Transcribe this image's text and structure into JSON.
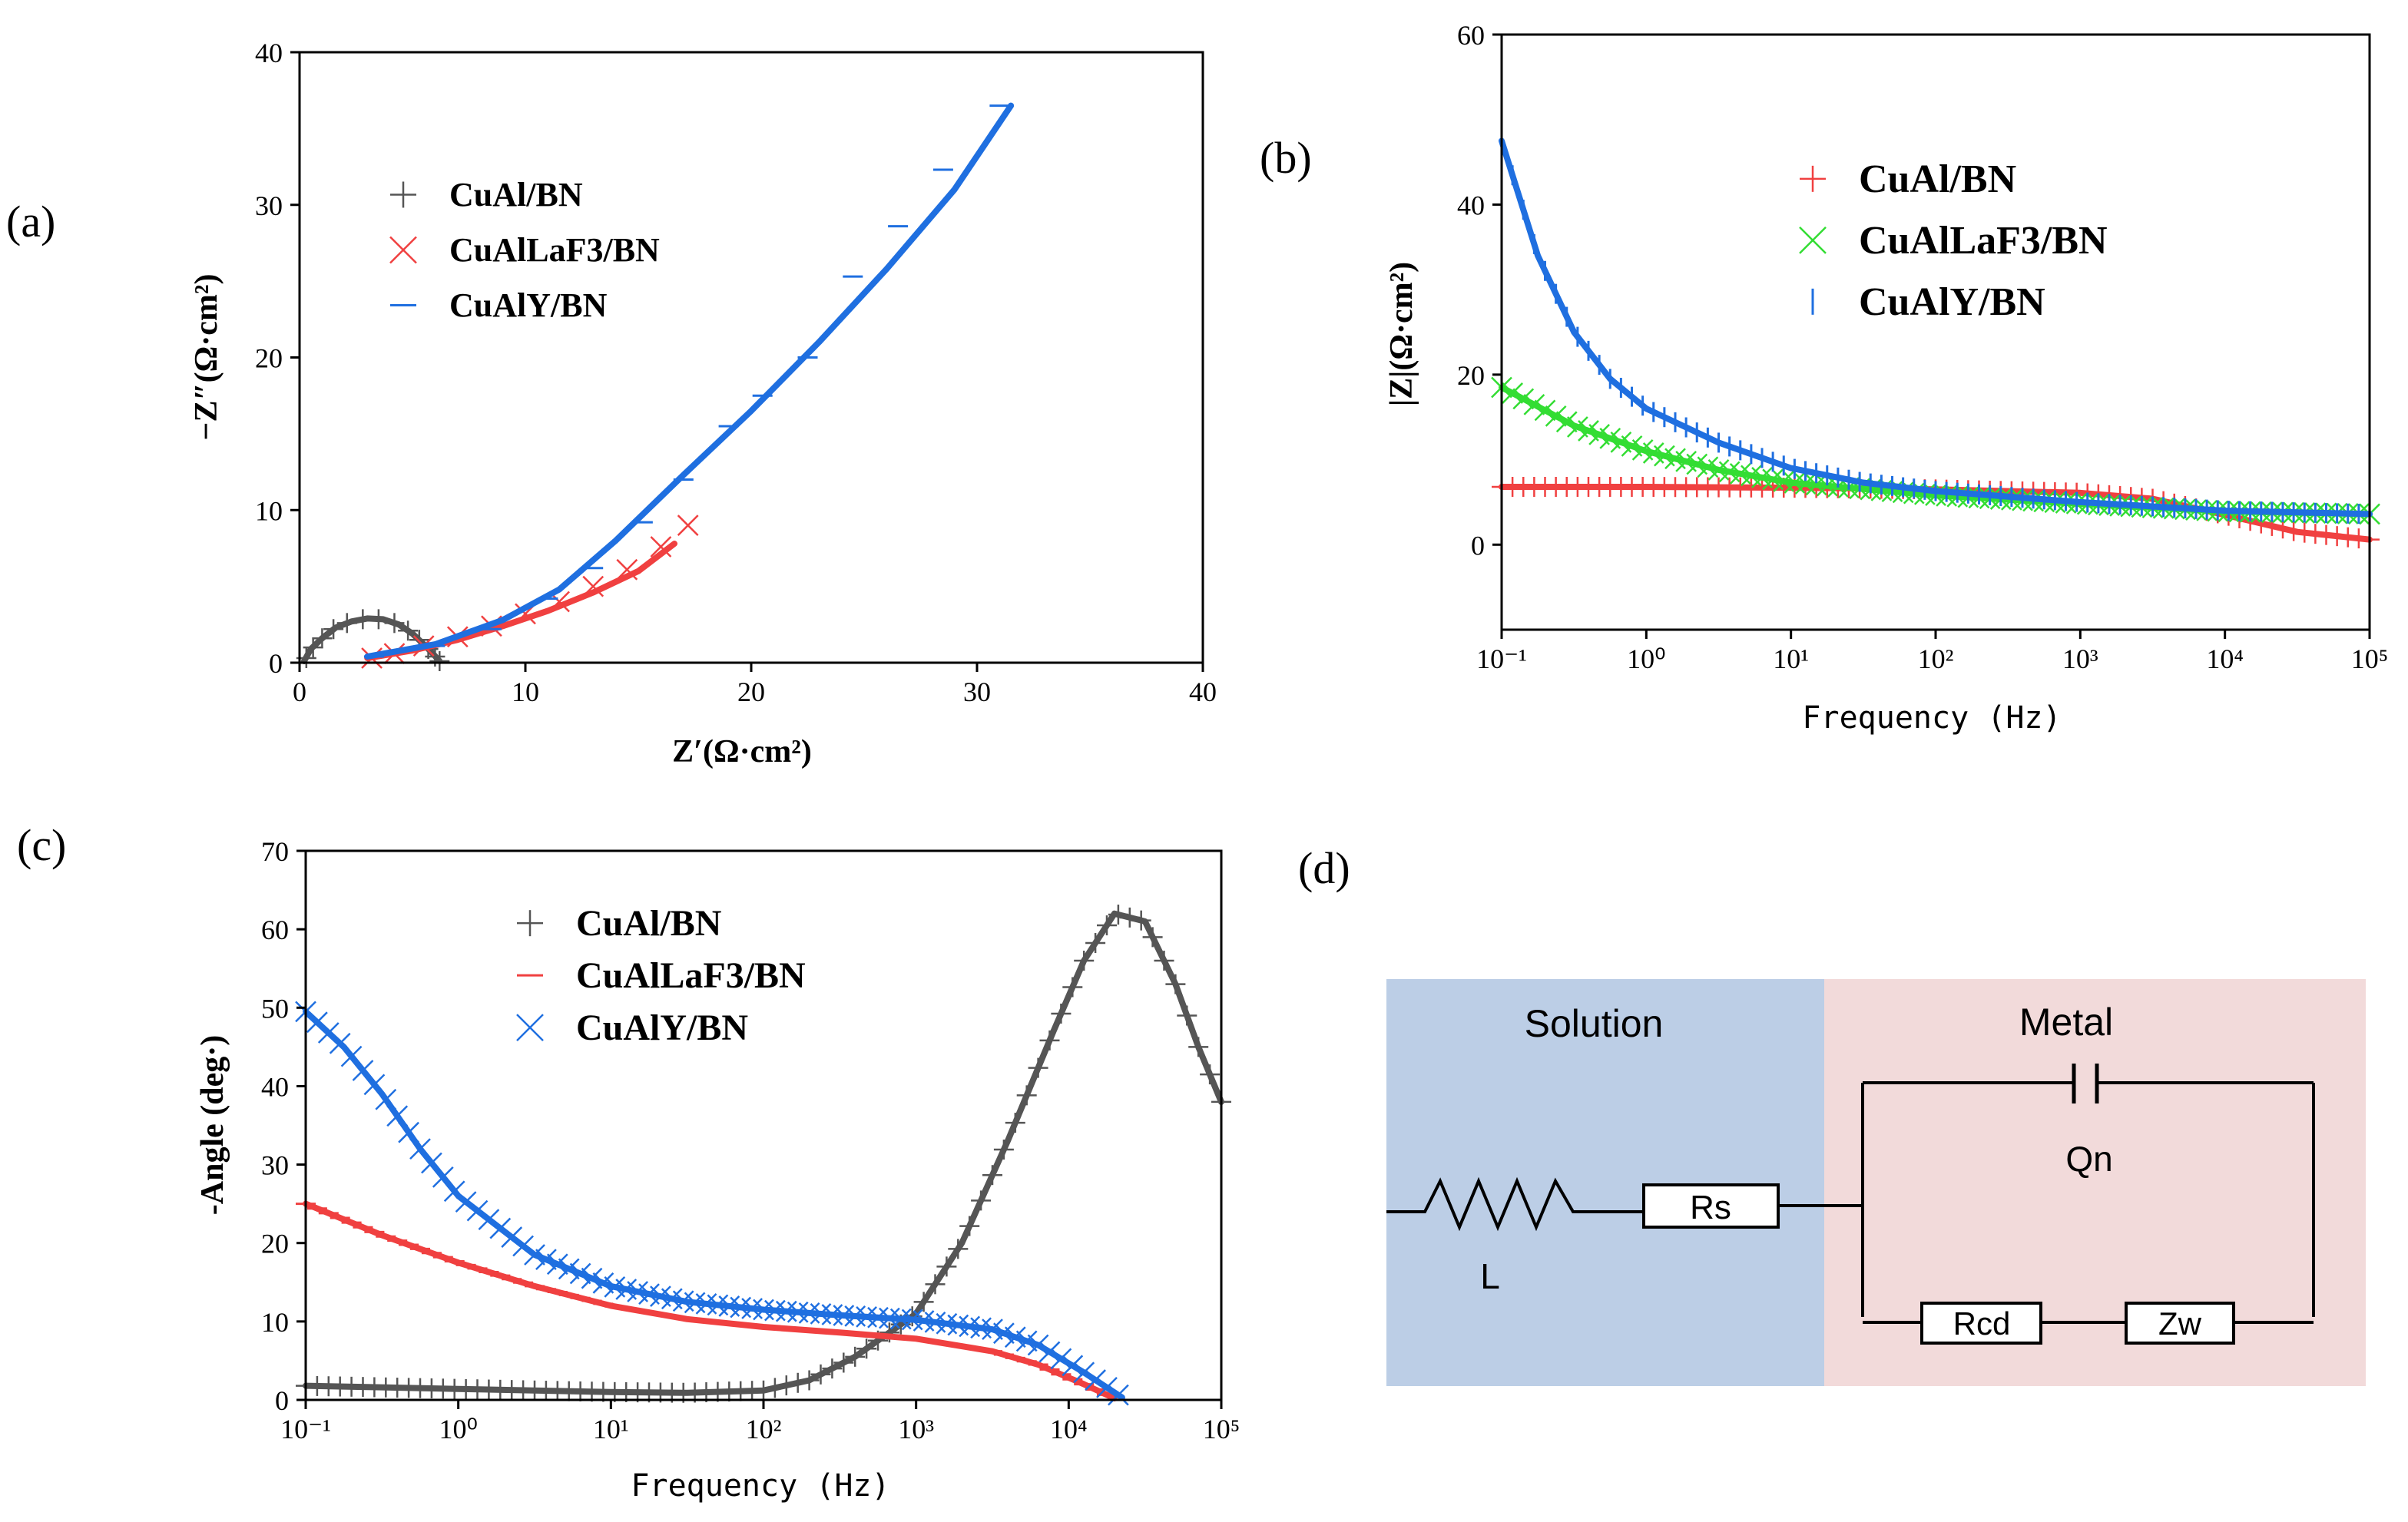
{
  "panels": {
    "a": {
      "label": "(a)"
    },
    "b": {
      "label": "(b)"
    },
    "c": {
      "label": "(c)"
    },
    "d": {
      "label": "(d)"
    }
  },
  "colors": {
    "gray": "#555555",
    "red": "#f04040",
    "blue": "#1f6fe0",
    "green": "#33dd33",
    "solution_bg": "#bccee6",
    "metal_bg": "#f2dada"
  },
  "chart_data": [
    {
      "id": "a",
      "type": "scatter",
      "title": "",
      "xlabel": "Z′(Ω·cm²)",
      "ylabel": "−Z″(Ω·cm²)",
      "xlim": [
        0,
        40
      ],
      "ylim": [
        0,
        40
      ],
      "xticks": [
        "0",
        "10",
        "20",
        "30",
        "40"
      ],
      "yticks": [
        "0",
        "10",
        "20",
        "30",
        "40"
      ],
      "legend": [
        {
          "name": "CuAl/BN",
          "marker": "+",
          "color": "#555555"
        },
        {
          "name": "CuAlLaF3/BN",
          "marker": "x",
          "color": "#f04040"
        },
        {
          "name": "CuAlY/BN",
          "marker": "-",
          "color": "#1f6fe0"
        }
      ],
      "series": [
        {
          "name": "CuAl/BN",
          "color": "#555555",
          "marker": "+",
          "points": [
            [
              0.3,
              0.3
            ],
            [
              0.6,
              1.0
            ],
            [
              1.0,
              1.6
            ],
            [
              1.5,
              2.2
            ],
            [
              2.1,
              2.6
            ],
            [
              2.8,
              2.85
            ],
            [
              3.5,
              2.85
            ],
            [
              4.2,
              2.6
            ],
            [
              4.8,
              2.1
            ],
            [
              5.3,
              1.5
            ],
            [
              5.7,
              0.9
            ],
            [
              6.0,
              0.4
            ],
            [
              6.2,
              0.1
            ]
          ],
          "fit": [
            [
              0.2,
              0.1
            ],
            [
              0.5,
              0.9
            ],
            [
              1.0,
              1.6
            ],
            [
              1.6,
              2.3
            ],
            [
              2.3,
              2.7
            ],
            [
              3.0,
              2.9
            ],
            [
              3.7,
              2.85
            ],
            [
              4.4,
              2.5
            ],
            [
              5.0,
              1.9
            ],
            [
              5.5,
              1.2
            ],
            [
              5.9,
              0.6
            ],
            [
              6.2,
              0.1
            ]
          ]
        },
        {
          "name": "CuAlLaF3/BN",
          "color": "#f04040",
          "marker": "x",
          "points": [
            [
              3.2,
              0.3
            ],
            [
              4.2,
              0.6
            ],
            [
              5.5,
              1.1
            ],
            [
              7.0,
              1.7
            ],
            [
              8.5,
              2.4
            ],
            [
              10.0,
              3.2
            ],
            [
              11.5,
              4.0
            ],
            [
              13.0,
              5.0
            ],
            [
              14.5,
              6.1
            ],
            [
              16.0,
              7.6
            ],
            [
              17.2,
              9.0
            ]
          ],
          "fit": [
            [
              3.0,
              0.3
            ],
            [
              5.0,
              0.8
            ],
            [
              7.0,
              1.5
            ],
            [
              9.0,
              2.4
            ],
            [
              11.0,
              3.4
            ],
            [
              13.0,
              4.6
            ],
            [
              15.0,
              6.0
            ],
            [
              16.6,
              7.8
            ]
          ]
        },
        {
          "name": "CuAlY/BN",
          "color": "#1f6fe0",
          "marker": "-",
          "points": [
            [
              3.3,
              0.4
            ],
            [
              6.0,
              1.1
            ],
            [
              8.5,
              2.2
            ],
            [
              11.0,
              4.2
            ],
            [
              13.0,
              6.2
            ],
            [
              15.2,
              9.2
            ],
            [
              17.0,
              12.0
            ],
            [
              19.0,
              15.5
            ],
            [
              20.5,
              17.5
            ],
            [
              22.5,
              20.0
            ],
            [
              24.5,
              25.3
            ],
            [
              26.5,
              28.6
            ],
            [
              28.5,
              32.3
            ],
            [
              31.0,
              36.5
            ]
          ],
          "fit": [
            [
              3.0,
              0.4
            ],
            [
              6.0,
              1.2
            ],
            [
              9.0,
              2.8
            ],
            [
              11.5,
              4.8
            ],
            [
              14.0,
              8.0
            ],
            [
              17.0,
              12.3
            ],
            [
              20.0,
              16.5
            ],
            [
              23.0,
              21.0
            ],
            [
              26.0,
              25.8
            ],
            [
              29.0,
              31.0
            ],
            [
              31.5,
              36.5
            ]
          ]
        }
      ]
    },
    {
      "id": "b",
      "type": "line",
      "title": "",
      "xlabel": "Frequency (Hz)",
      "ylabel": "|Z|(Ω·cm²)",
      "xscale": "log",
      "xlim_exp": [
        -1,
        5
      ],
      "ylim": [
        -10,
        60
      ],
      "xticks": [
        "10⁻¹",
        "10⁰",
        "10¹",
        "10²",
        "10³",
        "10⁴",
        "10⁵"
      ],
      "yticks": [
        "0",
        "20",
        "40",
        "60"
      ],
      "legend": [
        {
          "name": "CuAl/BN",
          "marker": "+",
          "color": "#f04040"
        },
        {
          "name": "CuAlLaF3/BN",
          "marker": "x",
          "color": "#33dd33"
        },
        {
          "name": "CuAlY/BN",
          "marker": "|",
          "color": "#1f6fe0"
        }
      ],
      "series": [
        {
          "name": "CuAl/BN",
          "color": "#f04040",
          "marker": "+",
          "points": [
            [
              -1,
              6.8
            ],
            [
              0,
              6.8
            ],
            [
              1,
              6.7
            ],
            [
              2,
              6.5
            ],
            [
              3,
              6.1
            ],
            [
              3.5,
              5.4
            ],
            [
              4,
              3.5
            ],
            [
              4.5,
              1.5
            ],
            [
              5,
              0.6
            ]
          ]
        },
        {
          "name": "CuAlLaF3/BN",
          "color": "#33dd33",
          "marker": "x",
          "points": [
            [
              -1,
              18.5
            ],
            [
              -0.5,
              14.0
            ],
            [
              0,
              11.0
            ],
            [
              0.5,
              8.8
            ],
            [
              1,
              7.3
            ],
            [
              2,
              5.8
            ],
            [
              3,
              4.8
            ],
            [
              4,
              3.9
            ],
            [
              5,
              3.6
            ]
          ]
        },
        {
          "name": "CuAlY/BN",
          "color": "#1f6fe0",
          "marker": "|",
          "points": [
            [
              -1,
              47.5
            ],
            [
              -0.75,
              34.0
            ],
            [
              -0.5,
              25.0
            ],
            [
              -0.25,
              19.5
            ],
            [
              0,
              16.0
            ],
            [
              0.5,
              12.0
            ],
            [
              1,
              9.0
            ],
            [
              1.5,
              7.3
            ],
            [
              2,
              6.3
            ],
            [
              3,
              5.0
            ],
            [
              4,
              4.0
            ],
            [
              5,
              3.6
            ]
          ]
        }
      ]
    },
    {
      "id": "c",
      "type": "line",
      "title": "",
      "xlabel": "Frequency (Hz)",
      "ylabel": "-Angle (deg·)",
      "xscale": "log",
      "xlim_exp": [
        -1,
        5
      ],
      "ylim": [
        0,
        70
      ],
      "xticks": [
        "10⁻¹",
        "10⁰",
        "10¹",
        "10²",
        "10³",
        "10⁴",
        "10⁵"
      ],
      "yticks": [
        "0",
        "10",
        "20",
        "30",
        "40",
        "50",
        "60",
        "70"
      ],
      "legend": [
        {
          "name": "CuAl/BN",
          "marker": "+",
          "color": "#555555"
        },
        {
          "name": "CuAlLaF3/BN",
          "marker": "-",
          "color": "#f04040"
        },
        {
          "name": "CuAlY/BN",
          "marker": "x",
          "color": "#1f6fe0"
        }
      ],
      "series": [
        {
          "name": "CuAl/BN",
          "color": "#555555",
          "marker": "+",
          "points": [
            [
              -1,
              1.8
            ],
            [
              0,
              1.4
            ],
            [
              0.5,
              1.2
            ],
            [
              1,
              1.0
            ],
            [
              1.5,
              0.9
            ],
            [
              2,
              1.2
            ],
            [
              2.3,
              2.5
            ],
            [
              2.6,
              5.5
            ],
            [
              3,
              11.0
            ],
            [
              3.3,
              20.0
            ],
            [
              3.6,
              33.0
            ],
            [
              3.9,
              47.0
            ],
            [
              4.1,
              56.0
            ],
            [
              4.3,
              62.0
            ],
            [
              4.5,
              61.0
            ],
            [
              4.7,
              53.0
            ],
            [
              4.85,
              45.0
            ],
            [
              5,
              38.0
            ]
          ]
        },
        {
          "name": "CuAlLaF3/BN",
          "color": "#f04040",
          "marker": "-",
          "points": [
            [
              -1,
              25.0
            ],
            [
              -0.5,
              21.0
            ],
            [
              0,
              17.5
            ],
            [
              0.5,
              14.5
            ],
            [
              1,
              12.0
            ],
            [
              1.5,
              10.3
            ],
            [
              2,
              9.3
            ],
            [
              2.5,
              8.6
            ],
            [
              3,
              7.8
            ],
            [
              3.5,
              6.2
            ],
            [
              3.8,
              4.5
            ],
            [
              4.1,
              2.0
            ],
            [
              4.3,
              0.2
            ]
          ]
        },
        {
          "name": "CuAlY/BN",
          "color": "#1f6fe0",
          "marker": "x",
          "points": [
            [
              -1,
              49.5
            ],
            [
              -0.75,
              45.0
            ],
            [
              -0.5,
              39.0
            ],
            [
              -0.25,
              32.0
            ],
            [
              0,
              26.0
            ],
            [
              0.5,
              18.5
            ],
            [
              1,
              14.5
            ],
            [
              1.5,
              12.5
            ],
            [
              2,
              11.5
            ],
            [
              2.5,
              10.8
            ],
            [
              3,
              10.2
            ],
            [
              3.5,
              9.0
            ],
            [
              3.8,
              7.0
            ],
            [
              4.1,
              3.5
            ],
            [
              4.35,
              0.3
            ]
          ]
        }
      ]
    }
  ],
  "circuit": {
    "solution_label": "Solution",
    "metal_label": "Metal",
    "inductor_label": "L",
    "rs_label": "Rs",
    "q_label": "Qn",
    "rcd_label": "Rcd",
    "zw_label": "Zw"
  }
}
